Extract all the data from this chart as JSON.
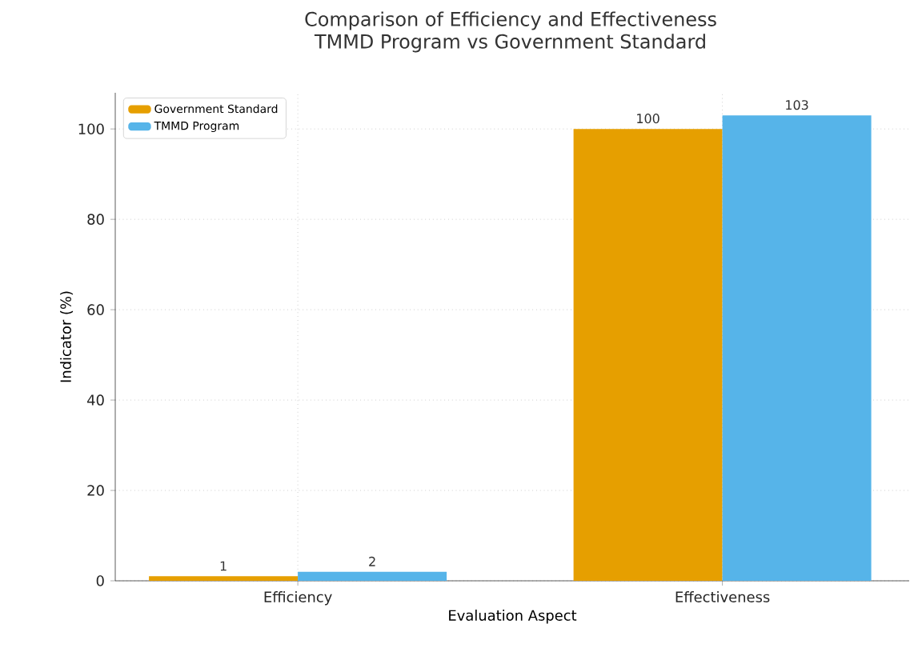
{
  "chart_data": {
    "type": "bar",
    "title": "Comparison of Efficiency and Effectiveness",
    "subtitle": "TMMD Program vs Government Standard",
    "xlabel": "Evaluation Aspect",
    "ylabel": "Indicator (%)",
    "categories": [
      "Efficiency",
      "Effectiveness"
    ],
    "series": [
      {
        "name": "Government Standard",
        "color": "#e69f00",
        "values": [
          1,
          100
        ]
      },
      {
        "name": "TMMD Program",
        "color": "#56b4e9",
        "values": [
          2,
          103
        ]
      }
    ],
    "ylim": [
      0,
      108
    ],
    "yticks": [
      0,
      20,
      40,
      60,
      80,
      100
    ],
    "grid": true,
    "legend": "top left",
    "data_labels": true
  }
}
